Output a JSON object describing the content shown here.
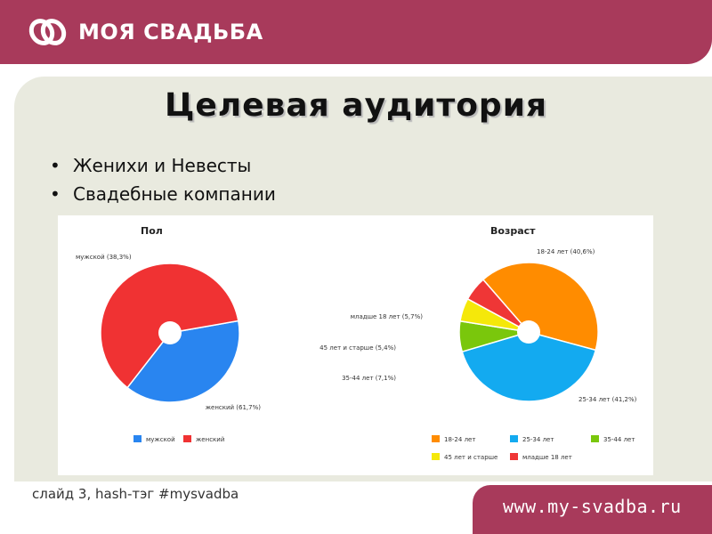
{
  "header": {
    "brand_text": "МОЯ СВАДЬБА",
    "brand_color": "#a83a5b"
  },
  "slide": {
    "title": "Целевая аудитория",
    "bullets": [
      "Женихи и Невесты",
      "Свадебные компании"
    ]
  },
  "footer": {
    "note": "слайд 3, hash-тэг #mysvadba",
    "url": "www.my-svadba.ru"
  },
  "chart_data": [
    {
      "type": "pie",
      "title": "Пол",
      "donut": true,
      "slices": [
        {
          "label": "мужской (38,3%)",
          "legend": "мужской",
          "value": 38.3,
          "color": "#2985f0"
        },
        {
          "label": "женский (61,7%)",
          "legend": "женский",
          "value": 61.7,
          "color": "#f03233"
        }
      ],
      "legend_position": "bottom"
    },
    {
      "type": "pie",
      "title": "Возраст",
      "donut": true,
      "slices": [
        {
          "label": "18-24 лет (40,6%)",
          "legend": "18-24 лет",
          "value": 40.6,
          "color": "#ff8c00"
        },
        {
          "label": "25-34 лет (41,2%)",
          "legend": "25-34 лет",
          "value": 41.2,
          "color": "#13aaf0"
        },
        {
          "label": "35-44 лет (7,1%)",
          "legend": "35-44 лет",
          "value": 7.1,
          "color": "#7ac70c"
        },
        {
          "label": "45 лет и старше (5,4%)",
          "legend": "45 лет и старше",
          "value": 5.4,
          "color": "#f5e80a"
        },
        {
          "label": "младше 18 лет (5,7%)",
          "legend": "младше 18 лет",
          "value": 5.7,
          "color": "#ef3636"
        }
      ],
      "legend_position": "bottom"
    }
  ]
}
